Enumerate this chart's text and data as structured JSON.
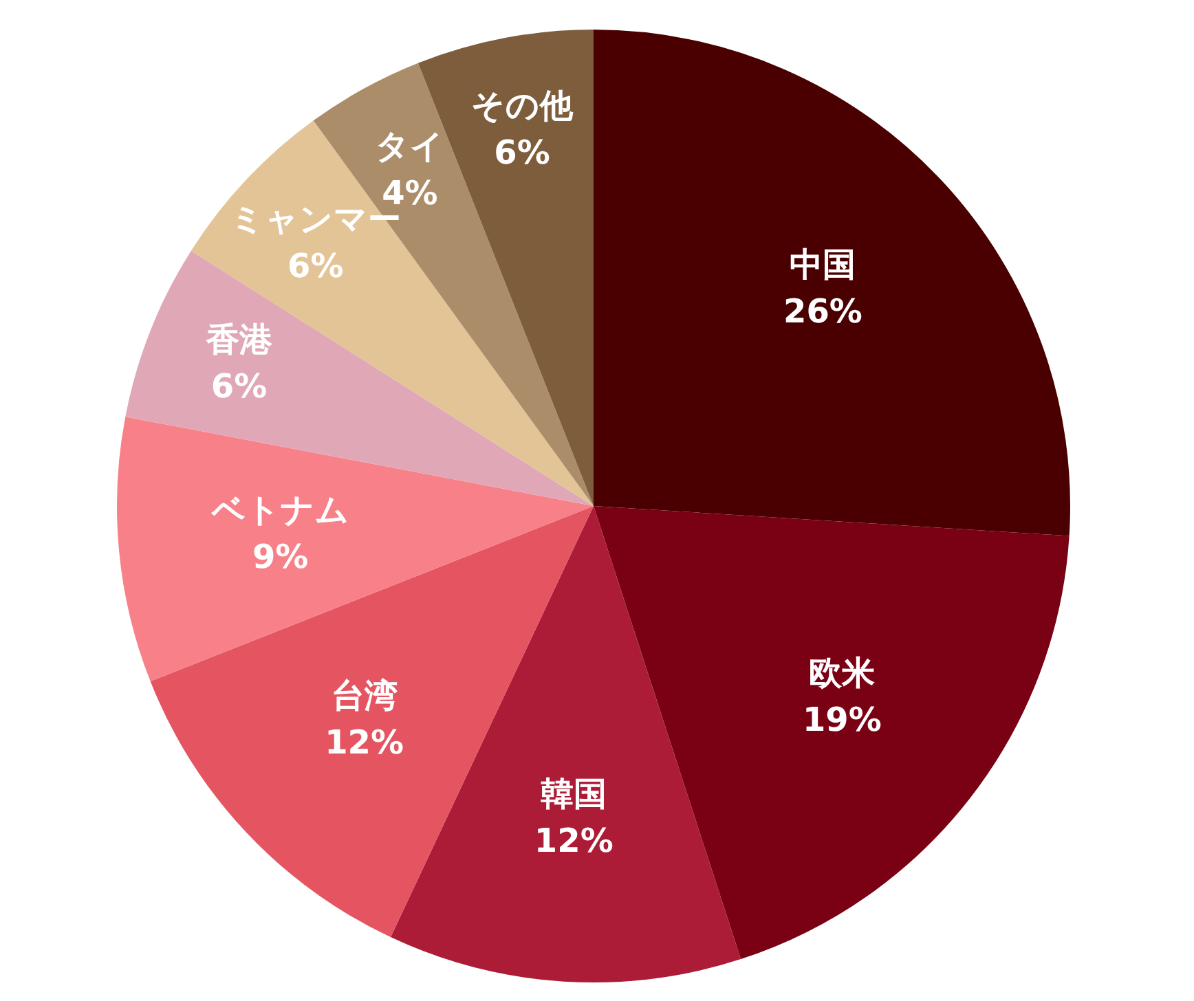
{
  "chart_data": {
    "type": "pie",
    "categories": [
      "中国",
      "欧米",
      "韓国",
      "台湾",
      "ベトナム",
      "香港",
      "ミャンマー",
      "タイ",
      "その他"
    ],
    "values": [
      26,
      19,
      12,
      12,
      9,
      6,
      6,
      4,
      6
    ],
    "value_labels": [
      "26%",
      "19%",
      "12%",
      "12%",
      "9%",
      "6%",
      "6%",
      "4%",
      "6%"
    ],
    "colors": [
      "#4a0000",
      "#7a0014",
      "#ad1c36",
      "#e45561",
      "#f88088",
      "#e0a8b6",
      "#e3c497",
      "#ab8d6a",
      "#7d5d3c"
    ],
    "legend": false
  }
}
